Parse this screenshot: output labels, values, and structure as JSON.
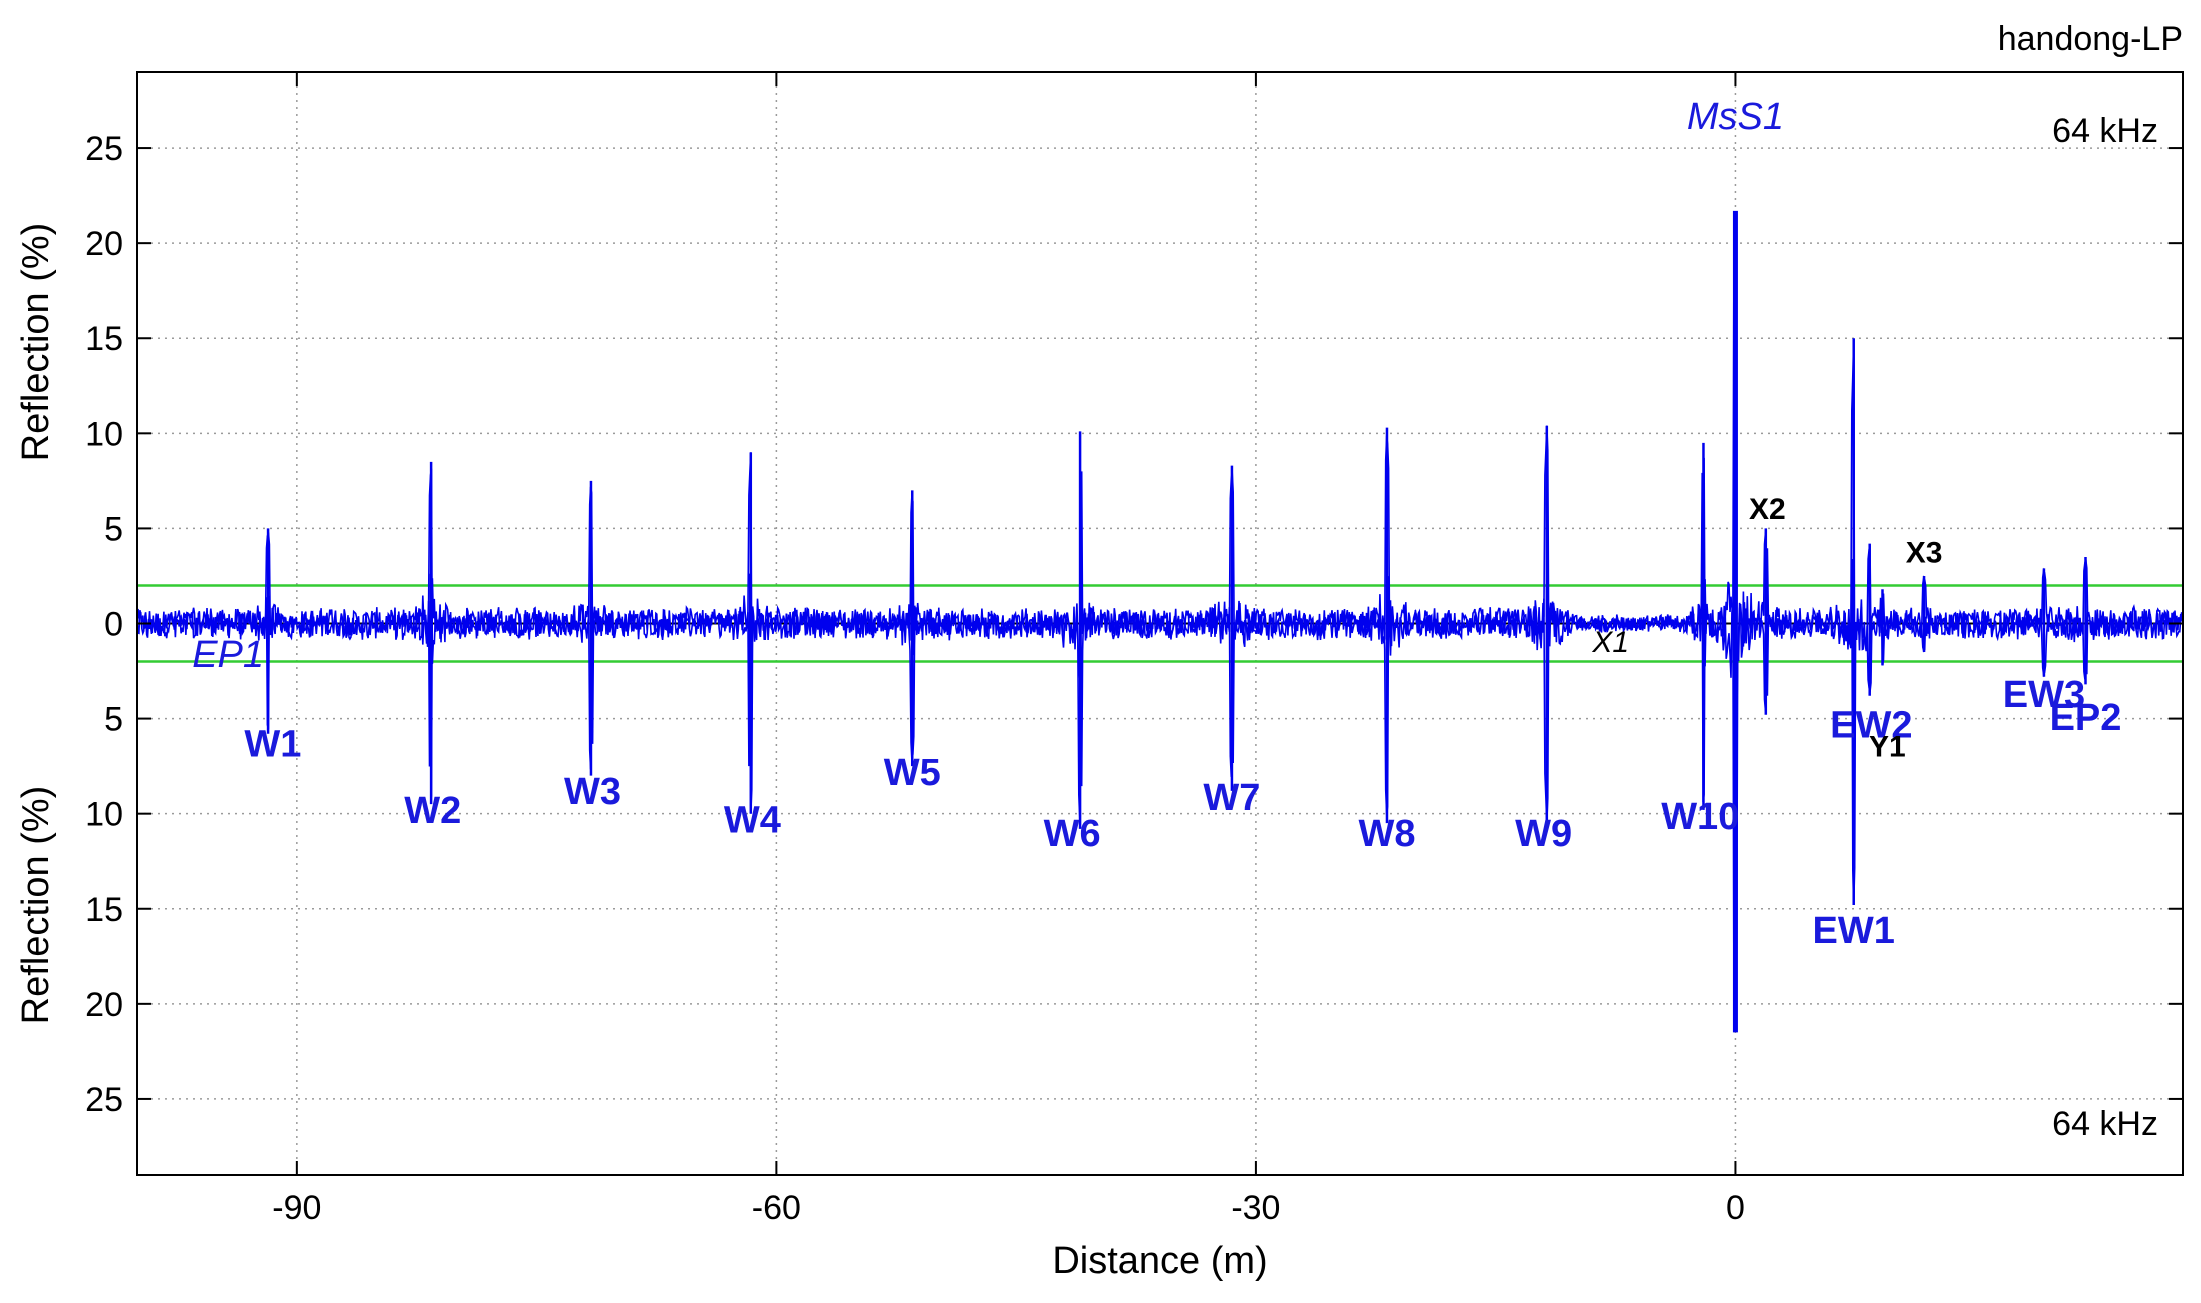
{
  "chart_data": {
    "type": "line",
    "title": "handong-LP",
    "xlabel": "Distance (m)",
    "ylabel_top": "Reflection (%)",
    "ylabel_bottom": "Reflection (%)",
    "xlim": [
      -100,
      28
    ],
    "ylim": [
      -29,
      29
    ],
    "x_ticks": [
      -90,
      -60,
      -30,
      0
    ],
    "y_ticks": [
      -25,
      -20,
      -15,
      -10,
      -5,
      0,
      5,
      10,
      15,
      20,
      25
    ],
    "y_tick_labels": [
      "25",
      "20",
      "15",
      "10",
      "5",
      "0",
      "5",
      "10",
      "15",
      "20",
      "25"
    ],
    "grid": true,
    "frequency_labels": [
      "64 kHz",
      "64 kHz"
    ],
    "threshold_lines": {
      "values": [
        2,
        -2
      ],
      "color": "#33cc33"
    },
    "series_color": "#0000ee",
    "peaks": [
      {
        "label": "W1",
        "x": -91.8,
        "up": 5,
        "down": 5.8,
        "label_x": -91.5,
        "label_y": -7
      },
      {
        "label": "W2",
        "x": -81.6,
        "up": 8.5,
        "down": 9.5,
        "label_x": -81.5,
        "label_y": -10.5
      },
      {
        "label": "W3",
        "x": -71.6,
        "up": 7.5,
        "down": 8.0,
        "label_x": -71.5,
        "label_y": -9.5
      },
      {
        "label": "W4",
        "x": -61.6,
        "up": 9.0,
        "down": 10.0,
        "label_x": -61.5,
        "label_y": -11
      },
      {
        "label": "W5",
        "x": -51.5,
        "up": 7.0,
        "down": 7.5,
        "label_x": -51.5,
        "label_y": -8.5
      },
      {
        "label": "W6",
        "x": -41.0,
        "up": 10.1,
        "down": 10.8,
        "label_x": -41.5,
        "label_y": -11.7
      },
      {
        "label": "W7",
        "x": -31.5,
        "up": 8.3,
        "down": 8.8,
        "label_x": -31.5,
        "label_y": -9.8
      },
      {
        "label": "W8",
        "x": -21.8,
        "up": 10.3,
        "down": 10.5,
        "label_x": -21.8,
        "label_y": -11.7
      },
      {
        "label": "W9",
        "x": -11.8,
        "up": 10.4,
        "down": 10.5,
        "label_x": -12.0,
        "label_y": -11.7
      },
      {
        "label": "W10",
        "x": -2.0,
        "up": 9.5,
        "down": 9.8,
        "label_x": -2.2,
        "label_y": -10.8
      },
      {
        "label": "MsS1",
        "x": 0.0,
        "up": 21.7,
        "down": 21.5,
        "label_x": 0.0,
        "label_y": 26
      },
      {
        "label": "X2",
        "x": 1.9,
        "up": 5.0,
        "down": 4.8,
        "label_x": 2.0,
        "label_y": 5.5
      },
      {
        "label": "EW1",
        "x": 7.4,
        "up": 15.0,
        "down": 14.8,
        "label_x": 7.4,
        "label_y": -16.8
      },
      {
        "label": "EW2",
        "x": 8.4,
        "up": 4.2,
        "down": 3.8,
        "label_x": 8.5,
        "label_y": -6
      },
      {
        "label": "Y1",
        "x": 9.2,
        "up": 1.8,
        "down": 2.2,
        "label_x": 9.5,
        "label_y": -7
      },
      {
        "label": "X3",
        "x": 11.8,
        "up": 2.5,
        "down": 1.5,
        "label_x": 11.8,
        "label_y": 3.2
      },
      {
        "label": "EW3",
        "x": 19.3,
        "up": 2.9,
        "down": 2.8,
        "label_x": 19.3,
        "label_y": -4.4
      },
      {
        "label": "EP2",
        "x": 21.9,
        "up": 3.5,
        "down": 3.2,
        "label_x": 21.9,
        "label_y": -5.6
      }
    ],
    "annotations": [
      {
        "label": "EP1",
        "x": -94.3,
        "y": -2.3
      },
      {
        "label": "X1",
        "x": -7.8,
        "y": -1.5
      }
    ]
  }
}
